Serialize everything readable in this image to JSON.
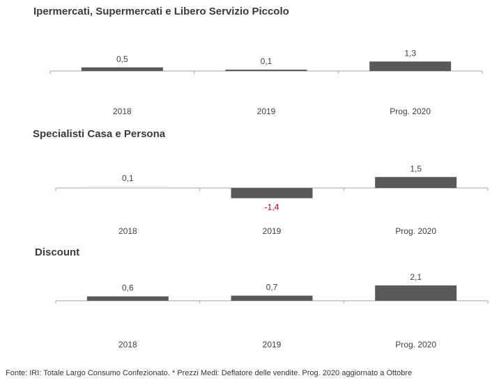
{
  "footer": "Fonte: IRI: Totale Largo Consumo Confezionato. * Prezzi Medi: Deflatore delle vendite.  Prog. 2020 aggiornato a Ottobre",
  "colors": {
    "bar": "#595959",
    "bar_faint": "#e6e6e6",
    "axis": "#a6a6a6",
    "label": "#404040",
    "negative_label": "#c00000"
  },
  "chart_data": [
    {
      "type": "bar",
      "title": "Ipermercati, Supermercati e Libero Servizio Piccolo",
      "categories": [
        "2018",
        "2019",
        "Prog. 2020"
      ],
      "values": [
        0.5,
        0.1,
        1.3
      ],
      "value_labels": [
        "0,5",
        "0,1",
        "1,3"
      ]
    },
    {
      "type": "bar",
      "title": "Specialisti Casa e Persona",
      "categories": [
        "2018",
        "2019",
        "Prog. 2020"
      ],
      "values": [
        0.1,
        -1.4,
        1.5
      ],
      "value_labels": [
        "0,1",
        "-1,4",
        "1,5"
      ]
    },
    {
      "type": "bar",
      "title": "Discount",
      "categories": [
        "2018",
        "2019",
        "Prog. 2020"
      ],
      "values": [
        0.6,
        0.7,
        2.1
      ],
      "value_labels": [
        "0,6",
        "0,7",
        "2,1"
      ]
    }
  ]
}
